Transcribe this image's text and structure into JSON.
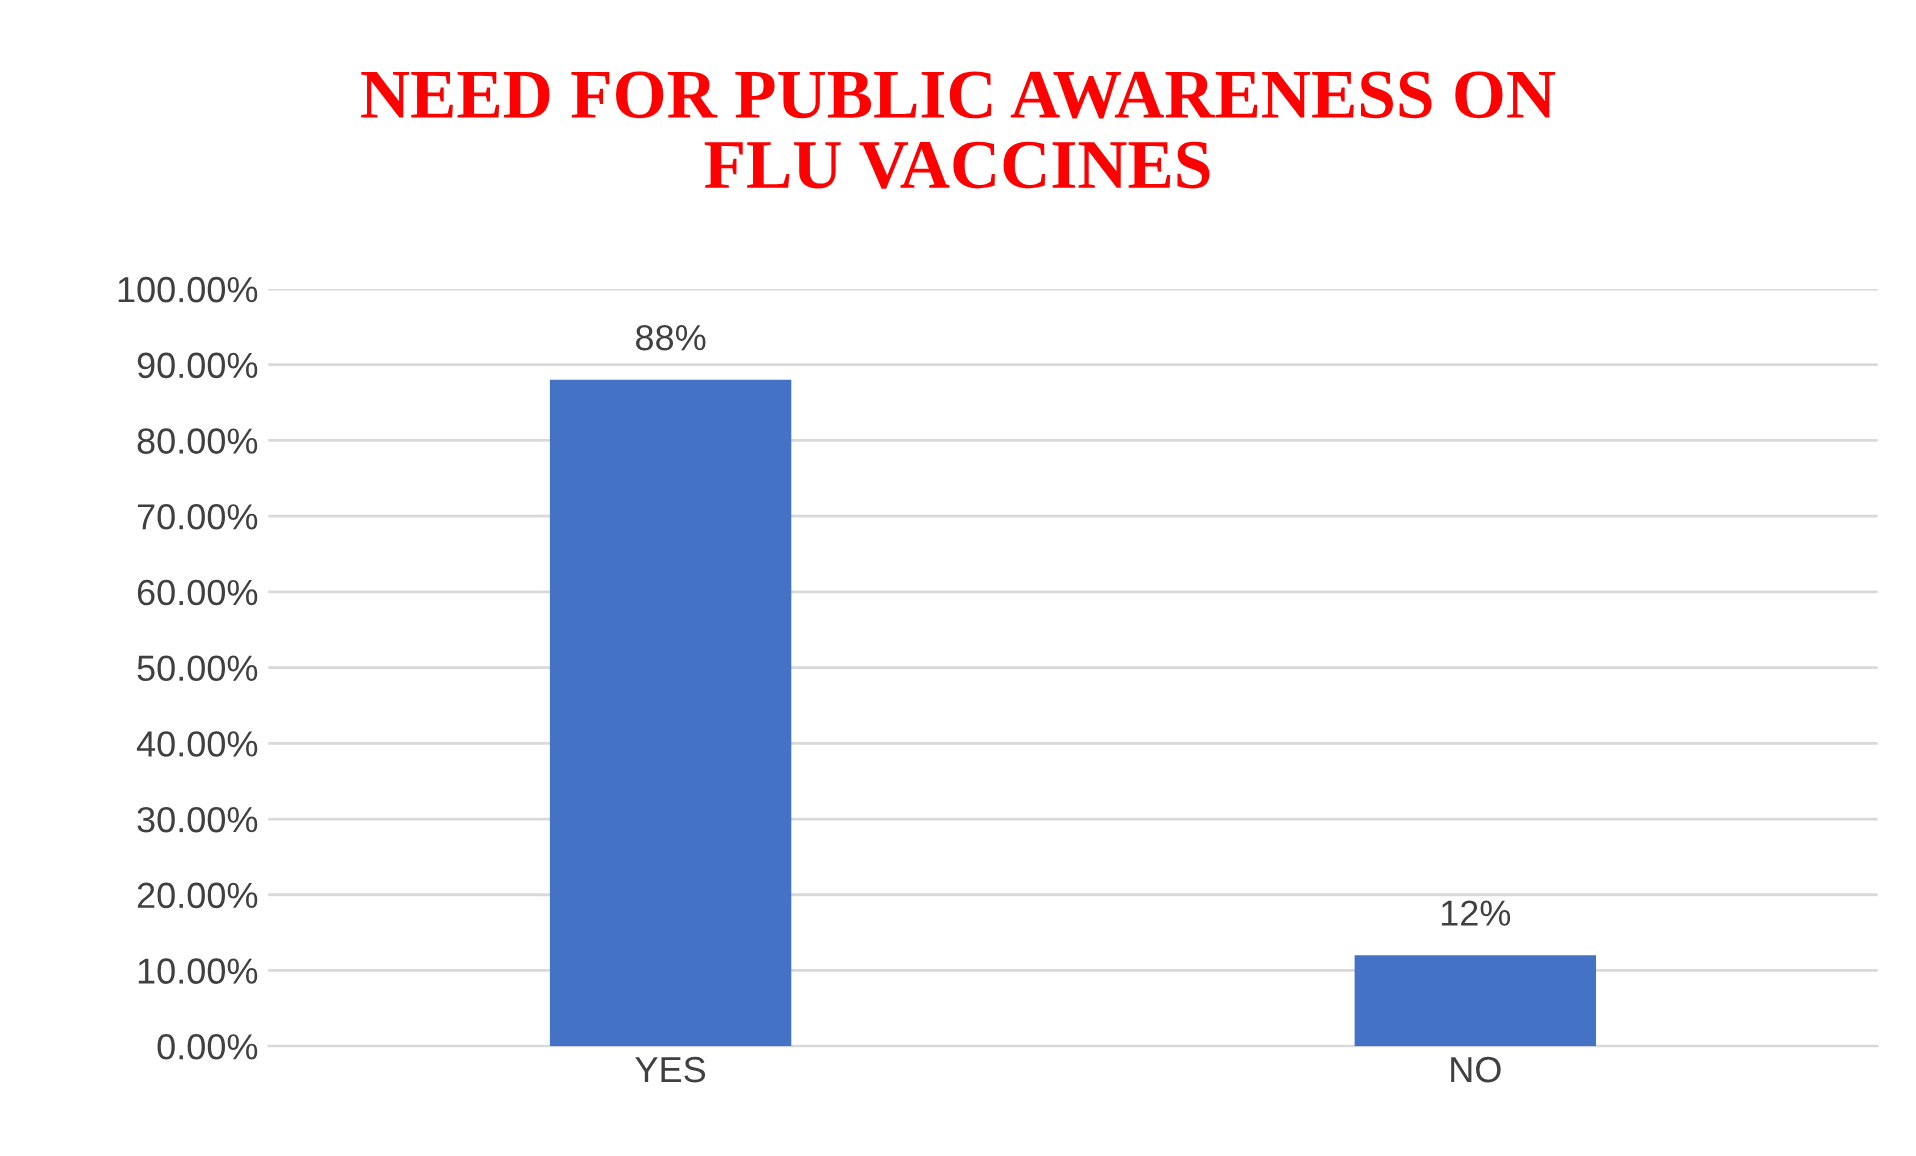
{
  "chart_data": {
    "type": "bar",
    "title": "NEED FOR PUBLIC AWARENESS ON\nFLU VACCINES",
    "categories": [
      "YES",
      "NO"
    ],
    "values": [
      88,
      12
    ],
    "value_labels": [
      "88%",
      "12%"
    ],
    "color": "#4472c4",
    "ylim": [
      0,
      100
    ],
    "yticks": [
      {
        "value": 0,
        "label": "0.00%"
      },
      {
        "value": 10,
        "label": "10.00%"
      },
      {
        "value": 20,
        "label": "20.00%"
      },
      {
        "value": 30,
        "label": "30.00%"
      },
      {
        "value": 40,
        "label": "40.00%"
      },
      {
        "value": 50,
        "label": "50.00%"
      },
      {
        "value": 60,
        "label": "60.00%"
      },
      {
        "value": 70,
        "label": "70.00%"
      },
      {
        "value": 80,
        "label": "80.00%"
      },
      {
        "value": 90,
        "label": "90.00%"
      },
      {
        "value": 100,
        "label": "100.00%"
      }
    ],
    "grid": "y",
    "legend": false
  }
}
